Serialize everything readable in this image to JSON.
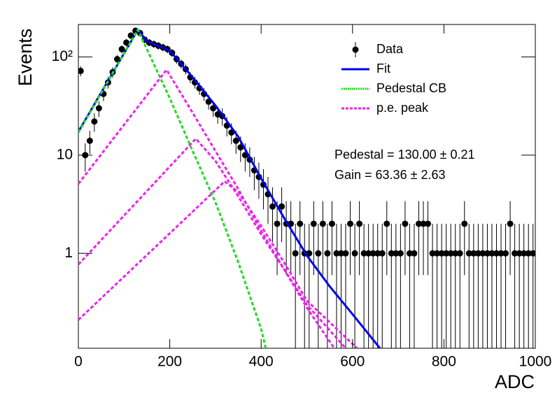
{
  "chart_data": {
    "type": "line",
    "ylabel": "Events",
    "xlabel": "ADC",
    "log_y": true,
    "xlim": [
      0,
      1000
    ],
    "xticks": [
      0,
      200,
      400,
      600,
      800,
      1000
    ],
    "ylim": [
      0.108,
      214
    ],
    "yticks": [
      1,
      10,
      {
        "value": 100,
        "label": "10²"
      }
    ],
    "legend": "top-right",
    "annotations": [
      "Pedestal = 130.00 ± 0.21",
      "Gain = 63.36 ± 2.63"
    ],
    "series": [
      {
        "name": "Data",
        "color": "#000000",
        "style": "points",
        "x": [
          5,
          15,
          25,
          35,
          45,
          55,
          65,
          75,
          85,
          95,
          105,
          115,
          125,
          135,
          145,
          155,
          165,
          175,
          185,
          195,
          205,
          215,
          225,
          235,
          245,
          255,
          265,
          275,
          285,
          295,
          305,
          315,
          325,
          335,
          345,
          355,
          365,
          375,
          385,
          395,
          405,
          415,
          425,
          435,
          445,
          455,
          465,
          475,
          485,
          495,
          505,
          515,
          525,
          535,
          545,
          555,
          565,
          575,
          585,
          595,
          605,
          615,
          625,
          635,
          645,
          655,
          665,
          675,
          685,
          695,
          705,
          715,
          725,
          735,
          745,
          755,
          765,
          775,
          785,
          795,
          805,
          815,
          825,
          835,
          845,
          855,
          865,
          875,
          885,
          895,
          905,
          915,
          925,
          935,
          945,
          955,
          965,
          975,
          985,
          995
        ],
        "values": [
          72,
          10,
          14,
          22,
          30,
          42,
          55,
          70,
          95,
          120,
          140,
          165,
          185,
          175,
          150,
          140,
          135,
          130,
          125,
          120,
          110,
          95,
          85,
          75,
          62,
          55,
          48,
          42,
          35,
          30,
          26,
          25,
          20,
          17,
          14,
          12,
          10,
          9,
          7,
          6,
          5,
          4,
          3,
          2,
          3,
          2,
          2,
          1,
          2,
          1,
          1,
          2,
          1,
          2,
          1,
          2,
          1,
          1,
          1,
          2,
          1,
          2,
          1,
          1,
          1,
          1,
          1,
          2,
          1,
          1,
          1,
          2,
          1,
          1,
          2,
          2,
          2,
          1,
          1,
          1,
          1,
          1,
          1,
          1,
          2,
          1,
          1,
          1,
          1,
          1,
          1,
          1,
          1,
          1,
          2,
          1,
          1,
          1,
          1,
          1
        ],
        "errors": [
          8.5,
          3.2,
          3.7,
          4.7,
          5.5,
          6.5,
          7.4,
          8.4,
          9.7,
          11,
          11.8,
          12.8,
          13.6,
          13.2,
          12.2,
          11.8,
          11.6,
          11.4,
          11.2,
          11,
          10.5,
          9.7,
          9.2,
          8.7,
          7.9,
          7.4,
          6.9,
          6.5,
          5.9,
          5.5,
          5.1,
          5,
          4.5,
          4.1,
          3.7,
          3.5,
          3.2,
          3,
          2.6,
          2.4,
          2.2,
          2,
          1.7,
          1.4,
          1.7,
          1.4,
          1.4,
          1,
          1.4,
          1,
          1,
          1.4,
          1,
          1.4,
          1,
          1.4,
          1,
          1,
          1,
          1.4,
          1,
          1.4,
          1,
          1,
          1,
          1,
          1,
          1.4,
          1,
          1,
          1,
          1.4,
          1,
          1,
          1.4,
          1.4,
          1.4,
          1,
          1,
          1,
          1,
          1,
          1,
          1,
          1.4,
          1,
          1,
          1,
          1,
          1,
          1,
          1,
          1,
          1,
          1.4,
          1,
          1,
          1,
          1,
          1
        ]
      },
      {
        "name": "Fit",
        "color": "#0000ee",
        "style": "solid",
        "x": [
          0,
          130,
          150,
          200,
          250,
          300,
          350,
          400,
          450,
          500,
          550,
          600,
          660
        ],
        "values": [
          17.3,
          189,
          145,
          116,
          62,
          32,
          15.4,
          5.8,
          2.3,
          0.95,
          0.46,
          0.24,
          0.108
        ]
      },
      {
        "name": "Pedestal CB",
        "color": "#22dd22",
        "style": "dashed",
        "x": [
          0,
          130,
          200,
          250,
          300,
          350,
          400,
          410
        ],
        "values": [
          17,
          189,
          38,
          11,
          3.3,
          0.81,
          0.17,
          0.108
        ]
      },
      {
        "name": "p.e. peak",
        "color": "#ee22ee",
        "style": "dashed",
        "curves": [
          {
            "x": [
              0,
              193,
              250,
              300,
              350,
              400,
              450,
              500,
              560
            ],
            "values": [
              5.1,
              74,
              27,
              11,
              4.5,
              1.7,
              0.69,
              0.28,
              0.108
            ]
          },
          {
            "x": [
              0,
              257,
              300,
              350,
              400,
              450,
              500,
              585
            ],
            "values": [
              0.77,
              14.7,
              8.7,
              3.8,
              1.56,
              0.69,
              0.3,
              0.108
            ]
          },
          {
            "x": [
              0,
              320,
              350,
              400,
              450,
              500,
              610
            ],
            "values": [
              0.21,
              5.4,
              4.2,
              1.9,
              0.81,
              0.33,
              0.108
            ]
          }
        ]
      }
    ]
  }
}
